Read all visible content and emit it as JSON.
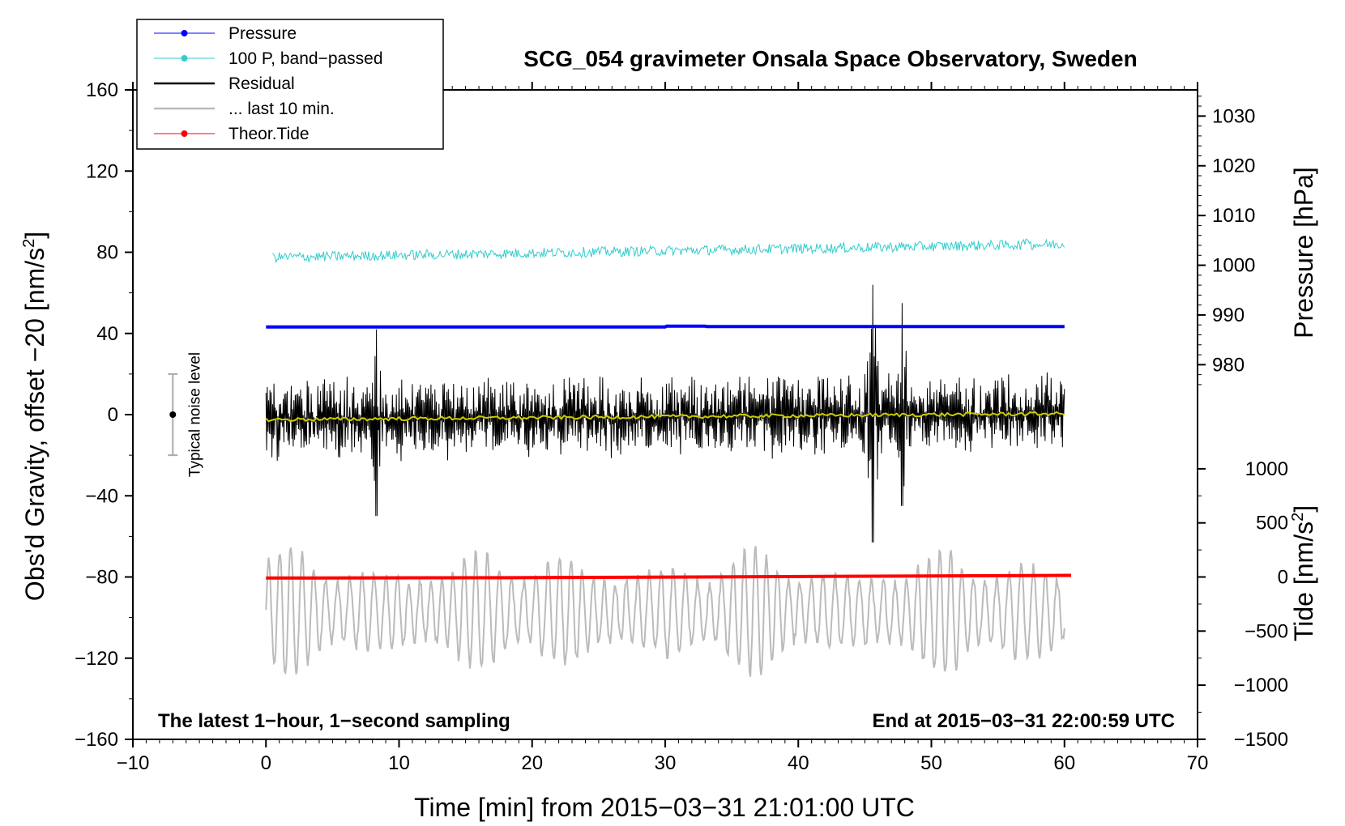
{
  "chart_data": {
    "type": "line",
    "title": "SCG_054 gravimeter Onsala Space Observatory, Sweden",
    "xlabel": "Time [min] from 2015−03−31 21:01:00 UTC",
    "ylabel_left_main": "Obs'd Gravity, offset −20 [nm/s",
    "ylabel_left_sup": "2",
    "ylabel_left_end": "]",
    "ylabel_right_top": "Pressure [hPa]",
    "ylabel_right_bottom_main": "Tide [nm/s",
    "ylabel_right_bottom_sup": "2",
    "ylabel_right_bottom_end": "]",
    "xlim": [
      -10,
      70
    ],
    "ylim": [
      -160,
      160
    ],
    "xticks": [
      -10,
      0,
      10,
      20,
      30,
      40,
      50,
      60,
      70
    ],
    "xtick_labels": [
      "−10",
      "0",
      "10",
      "20",
      "30",
      "40",
      "50",
      "60",
      "70"
    ],
    "yticks": [
      160,
      120,
      80,
      40,
      0,
      -40,
      -80,
      -120,
      -160
    ],
    "ytick_labels": [
      "160",
      "120",
      "80",
      "40",
      "0",
      "−40",
      "−80",
      "−120",
      "−160"
    ],
    "pressure_axis": {
      "ticks": [
        1030,
        1020,
        1010,
        1000,
        990,
        980
      ],
      "labels": [
        "1030",
        "1020",
        "1010",
        "1000",
        "990",
        "980"
      ],
      "gravity_at_1000": 73.6,
      "gravity_per_hPa": 2.45
    },
    "tide_axis": {
      "ticks": [
        1000,
        500,
        0,
        -500,
        -1000,
        -1500
      ],
      "labels": [
        "1000",
        "500",
        "0",
        "−500",
        "−1000",
        "−1500"
      ],
      "gravity_at_0": -80,
      "gravity_per_unit": 0.0533
    },
    "annotations": {
      "bottom_left": "The latest 1−hour, 1−second sampling",
      "bottom_right": "End at 2015−03−31 22:00:59 UTC",
      "noise_label": "Typical noise level"
    },
    "noise_bar": {
      "x": -7,
      "center": 0,
      "half_range": 20
    },
    "legend": [
      {
        "label": "Pressure",
        "color": "#0000ff"
      },
      {
        "label": "100 P, band−passed",
        "color": "#33cccc"
      },
      {
        "label": "Residual",
        "color": "#000000"
      },
      {
        "label": "... last 10 min.",
        "color": "#bbbbbb"
      },
      {
        "label": "Theor.Tide",
        "color": "#ff0000"
      }
    ],
    "series": [
      {
        "name": "Pressure",
        "color": "#0000ff",
        "x": [
          0,
          30,
          30.1,
          33,
          33.1,
          60
        ],
        "values": [
          43.2,
          43.2,
          43.6,
          43.6,
          43.4,
          43.4
        ]
      },
      {
        "name": "100 P, band-passed",
        "color": "#33cccc",
        "x": [
          0.5,
          60
        ],
        "values": [
          77.5,
          84
        ],
        "noise_amplitude": 2.5
      },
      {
        "name": "Residual",
        "color": "#000000",
        "x": [
          0,
          60
        ],
        "values": [
          -2,
          0
        ],
        "envelope": 22,
        "peaks": [
          {
            "x": 45.6,
            "max": 64,
            "min": -63
          },
          {
            "x": 8.3,
            "max": 42,
            "min": -50
          },
          {
            "x": 47.8,
            "max": 55,
            "min": -45
          }
        ]
      },
      {
        "name": "Residual smoothed",
        "color": "#cccc00",
        "x": [
          0,
          60
        ],
        "values": [
          -2.5,
          0.5
        ]
      },
      {
        "name": "... last 10 min.",
        "color": "#bbbbbb",
        "x": [
          0,
          60
        ],
        "center": -97,
        "amplitude_range": [
          -135,
          -52
        ]
      },
      {
        "name": "Theor.Tide",
        "color": "#ff0000",
        "x": [
          0,
          20,
          60.5
        ],
        "values": [
          -80.5,
          -80.3,
          -79.2
        ]
      }
    ],
    "colors": {
      "pressure": "#0000ff",
      "bandpass": "#33cccc",
      "residual": "#000000",
      "smoothed": "#cccc00",
      "last10": "#bbbbbb",
      "tide": "#ff0000"
    }
  }
}
